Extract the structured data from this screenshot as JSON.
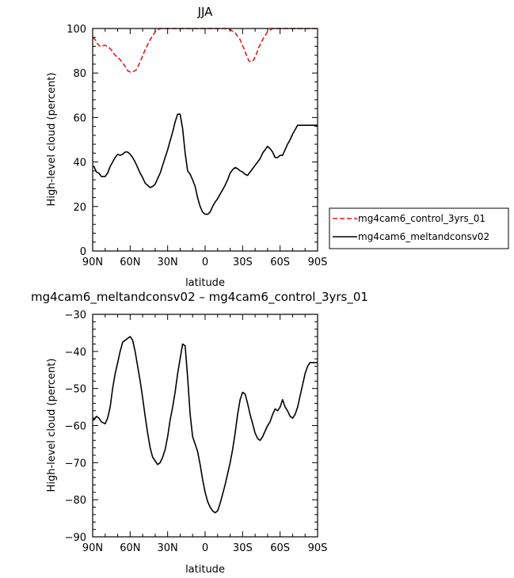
{
  "chart_data": [
    {
      "type": "line",
      "title": "JJA",
      "xlabel": "latitude",
      "ylabel": "High-level cloud (percent)",
      "xlim": [
        90,
        -90
      ],
      "ylim": [
        0,
        100
      ],
      "xticks": [
        90,
        60,
        30,
        0,
        -30,
        -60,
        -90
      ],
      "xtick_labels": [
        "90N",
        "60N",
        "30N",
        "0",
        "30S",
        "60S",
        "90S"
      ],
      "yticks": [
        0,
        20,
        40,
        60,
        80,
        100
      ],
      "ytick_labels": [
        "0",
        "20",
        "40",
        "60",
        "80",
        "100"
      ],
      "legend_position": "right",
      "series": [
        {
          "name": "mg4cam6_control_3yrs_01",
          "color": "#e8191b",
          "dash": "dashed",
          "x": [
            90,
            88,
            86,
            84,
            80,
            76,
            72,
            68,
            64,
            62,
            60,
            58,
            55,
            52,
            48,
            44,
            40,
            36,
            32,
            28,
            20,
            10,
            0,
            -10,
            -16,
            -20,
            -24,
            -28,
            -31,
            -33,
            -35,
            -37,
            -39,
            -41,
            -43,
            -46,
            -50,
            -54,
            -58,
            -62,
            -70,
            -80,
            -90
          ],
          "y": [
            96,
            95,
            93,
            92,
            92.5,
            91,
            88,
            86,
            83,
            81,
            80.5,
            80.5,
            81.5,
            85,
            90.5,
            95,
            98.5,
            100,
            100,
            100,
            100,
            100,
            100,
            100,
            100,
            99.5,
            98,
            95,
            91,
            88,
            85.5,
            85,
            86,
            88.5,
            91.5,
            95,
            98.5,
            100,
            100,
            100,
            100,
            100,
            100
          ]
        },
        {
          "name": "mg4cam6_meltandconsv02",
          "color": "#000000",
          "dash": "solid",
          "x": [
            90,
            89,
            87,
            85,
            83,
            80,
            78,
            76,
            74,
            72,
            70,
            68,
            66,
            64,
            62,
            60,
            58,
            56,
            54,
            52,
            50,
            48,
            46,
            44,
            42,
            40,
            38,
            36,
            34,
            32,
            30,
            28,
            26,
            24,
            22,
            20,
            18,
            16,
            14,
            12,
            10,
            8,
            6,
            4,
            2,
            0,
            -2,
            -4,
            -6,
            -8,
            -10,
            -12,
            -14,
            -16,
            -18,
            -20,
            -22,
            -24,
            -26,
            -28,
            -30,
            -32,
            -34,
            -36,
            -38,
            -40,
            -42,
            -44,
            -46,
            -48,
            -50,
            -52,
            -54,
            -56,
            -58,
            -60,
            -62,
            -64,
            -66,
            -68,
            -70,
            -72,
            -74,
            -76,
            -78,
            -80,
            -82,
            -84,
            -86,
            -88,
            -90
          ],
          "y": [
            38,
            38,
            35.5,
            35,
            33.5,
            33.5,
            35,
            38,
            40,
            42,
            43.5,
            43,
            43.5,
            44.5,
            44.5,
            43.5,
            42,
            40,
            37.5,
            35,
            33,
            30.5,
            29.5,
            28.5,
            29,
            30,
            32.5,
            35,
            38.5,
            42,
            45.5,
            49.5,
            53.5,
            58,
            61.5,
            61.5,
            55,
            44,
            36,
            34.5,
            32,
            29,
            24,
            20,
            17.5,
            16.5,
            16.5,
            17.5,
            20,
            22,
            23.5,
            25.5,
            27.5,
            29.5,
            32,
            35,
            36.5,
            37.5,
            37,
            36,
            35.5,
            34.5,
            34,
            35.5,
            37,
            38.5,
            40,
            41.5,
            44,
            45.5,
            47,
            46,
            44.5,
            42,
            42,
            43,
            43,
            45.5,
            48,
            50,
            52.5,
            54.5,
            56.5,
            56.5,
            56.5,
            56.5,
            56.5,
            56.5,
            56.5,
            56.5,
            56.5
          ]
        }
      ]
    },
    {
      "type": "line",
      "title": "mg4cam6_meltandconsv02 – mg4cam6_control_3yrs_01",
      "xlabel": "latitude",
      "ylabel": "High-level cloud (percent)",
      "xlim": [
        90,
        -90
      ],
      "ylim": [
        -90,
        -30
      ],
      "xticks": [
        90,
        60,
        30,
        0,
        -30,
        -60,
        -90
      ],
      "xtick_labels": [
        "90N",
        "60N",
        "30N",
        "0",
        "30S",
        "60S",
        "90S"
      ],
      "yticks": [
        -90,
        -80,
        -70,
        -60,
        -50,
        -40,
        -30
      ],
      "ytick_labels": [
        "−90",
        "−80",
        "−70",
        "−60",
        "−50",
        "−40",
        "−30"
      ],
      "series": [
        {
          "color": "#000000",
          "dash": "solid",
          "x": [
            90,
            89,
            87,
            85,
            83,
            80,
            78,
            76,
            74,
            72,
            70,
            68,
            66,
            64,
            62,
            60,
            58,
            56,
            54,
            52,
            50,
            48,
            46,
            44,
            42,
            40,
            38,
            36,
            34,
            32,
            30,
            28,
            26,
            24,
            22,
            20,
            18,
            16,
            14,
            12,
            10,
            8,
            6,
            4,
            2,
            0,
            -2,
            -4,
            -6,
            -8,
            -10,
            -12,
            -14,
            -16,
            -18,
            -20,
            -22,
            -24,
            -26,
            -28,
            -30,
            -32,
            -34,
            -36,
            -38,
            -40,
            -42,
            -44,
            -46,
            -48,
            -50,
            -52,
            -54,
            -56,
            -58,
            -60,
            -62,
            -64,
            -66,
            -68,
            -70,
            -72,
            -74,
            -76,
            -78,
            -80,
            -82,
            -84,
            -86,
            -88,
            -90
          ],
          "y": [
            -58,
            -58.5,
            -57.5,
            -58,
            -59,
            -59.5,
            -58,
            -55,
            -50,
            -46,
            -43,
            -40,
            -37.5,
            -37,
            -36.5,
            -36,
            -37,
            -40,
            -44,
            -48,
            -52.5,
            -57.5,
            -62,
            -66,
            -68.5,
            -69.5,
            -70.5,
            -70,
            -68.5,
            -66.5,
            -63,
            -58.5,
            -55,
            -51,
            -46,
            -42,
            -38,
            -38.5,
            -47,
            -57,
            -63,
            -65,
            -67,
            -70.5,
            -74.5,
            -78,
            -80.5,
            -82,
            -83,
            -83.5,
            -83,
            -81,
            -78.5,
            -76,
            -73,
            -70,
            -66.5,
            -62,
            -57,
            -53,
            -51,
            -51.5,
            -54,
            -57,
            -59.5,
            -62,
            -63.5,
            -64,
            -63,
            -61.5,
            -60,
            -59,
            -57,
            -55.5,
            -56,
            -55,
            -53,
            -55,
            -56,
            -57.5,
            -58,
            -57,
            -55,
            -52,
            -49,
            -46,
            -44,
            -43,
            -43,
            -43,
            -43
          ]
        }
      ]
    }
  ]
}
